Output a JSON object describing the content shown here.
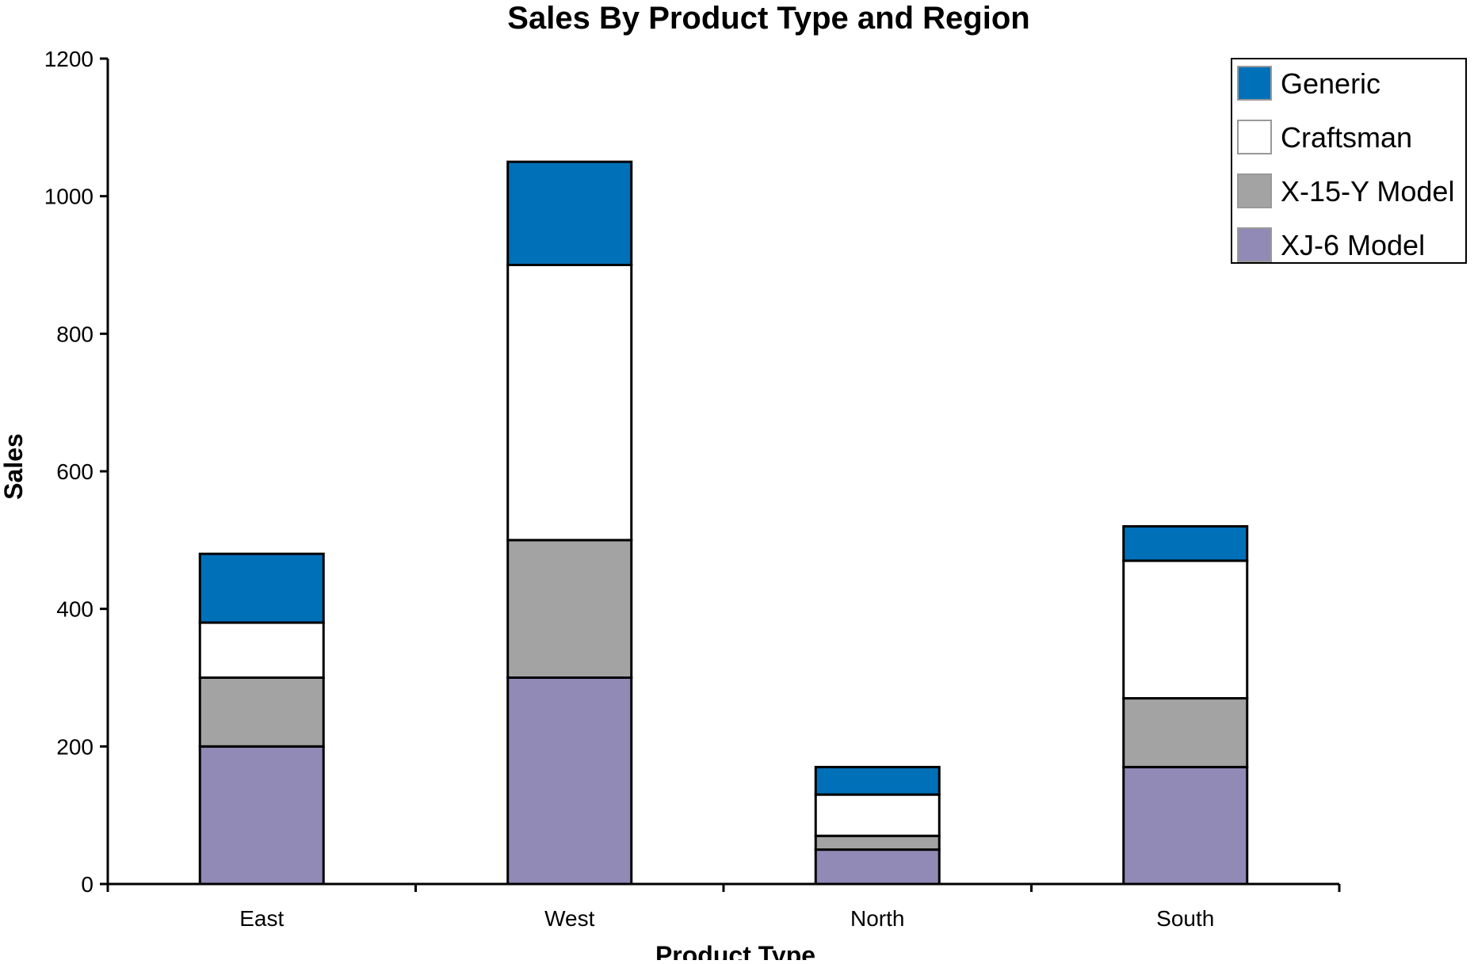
{
  "chart_data": {
    "type": "bar",
    "stacked": true,
    "title": "Sales By Product Type and Region",
    "xlabel": "Product Type",
    "ylabel": "Sales",
    "categories": [
      "East",
      "West",
      "North",
      "South"
    ],
    "ylim": [
      0,
      1200
    ],
    "yticks": [
      0,
      200,
      400,
      600,
      800,
      1000,
      1200
    ],
    "grid": false,
    "legend_position": "top-right",
    "series": [
      {
        "name": "XJ-6 Model",
        "color": "#9189b6",
        "values": [
          200,
          300,
          50,
          170
        ]
      },
      {
        "name": "X-15-Y Model",
        "color": "#a3a3a3",
        "values": [
          100,
          200,
          20,
          100
        ]
      },
      {
        "name": "Craftsman",
        "color": "#ffffff",
        "values": [
          80,
          400,
          60,
          200
        ]
      },
      {
        "name": "Generic",
        "color": "#0070b9",
        "values": [
          100,
          150,
          40,
          50
        ]
      }
    ],
    "legend_order": [
      "Generic",
      "Craftsman",
      "X-15-Y Model",
      "XJ-6 Model"
    ]
  }
}
